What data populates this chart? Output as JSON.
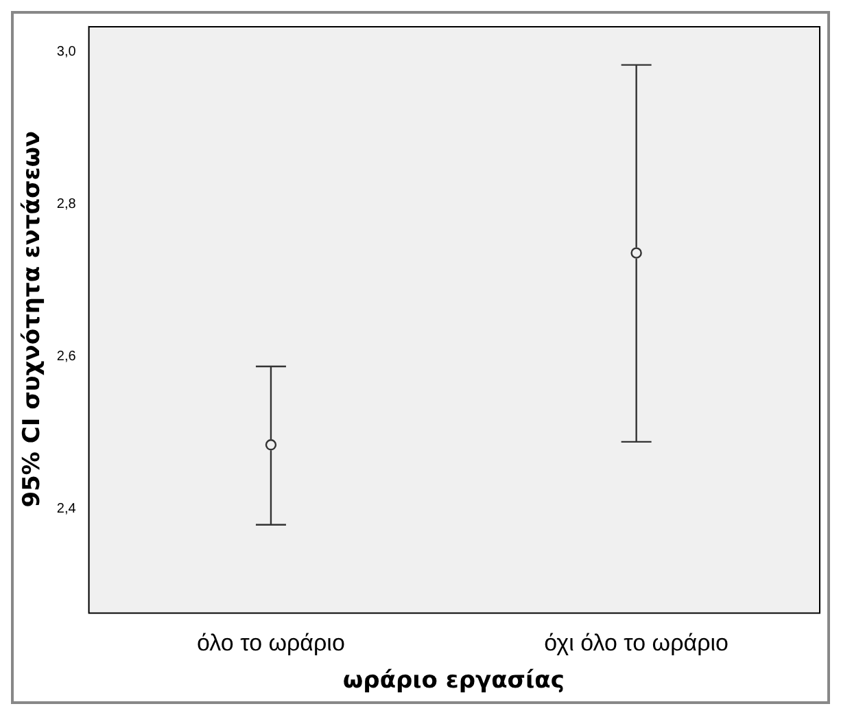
{
  "chart_data": {
    "type": "scatter",
    "xlabel": "ωράριο εργασίας",
    "ylabel": "95% CI συχνότητα εντάσεων",
    "categories": [
      "όλο το ωράριο",
      "όχι όλο το ωράριο"
    ],
    "values": [
      2.484,
      2.736
    ],
    "errors": [
      [
        2.379,
        2.587
      ],
      [
        2.488,
        2.983
      ]
    ],
    "color": "#333333",
    "marker": "circle",
    "grid": false,
    "legend": false,
    "ylim": [
      2.264,
      3.034
    ],
    "yticks": [
      {
        "value": 2.4,
        "label": "2,4"
      },
      {
        "value": 2.6,
        "label": "2,6"
      },
      {
        "value": 2.8,
        "label": "2,8"
      },
      {
        "value": 3.0,
        "label": "3,0"
      }
    ]
  }
}
